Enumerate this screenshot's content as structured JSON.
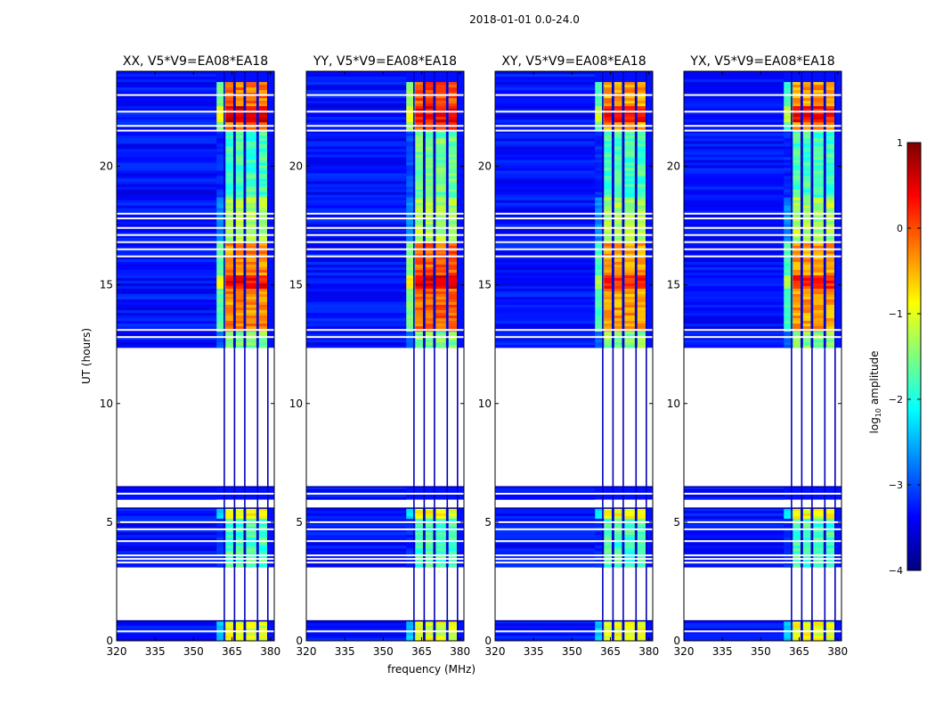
{
  "figure": {
    "suptitle": "2018-01-01 0.0-24.0"
  },
  "colormap": [
    "#00007f",
    "#0000ff",
    "#007fff",
    "#00ffff",
    "#7fff7f",
    "#ffff00",
    "#ff7f00",
    "#ff0000",
    "#7f0000"
  ],
  "chart_data": [
    {
      "type": "heatmap",
      "title": "XX, V5*V9=EA08*EA18",
      "xlabel": "",
      "ylabel": "UT (hours)",
      "xlim": [
        320,
        381.5
      ],
      "ylim": [
        0,
        24
      ],
      "xticks": [
        320,
        335,
        350,
        365,
        380
      ],
      "yticks": [
        0,
        5,
        10,
        15,
        20
      ],
      "zlabel": "log10 amplitude",
      "zlim": [
        -4,
        1
      ],
      "background_level": -3.3,
      "band_start_mhz": 359,
      "channel_bands_mhz": [
        [
          362.5,
          365.5
        ],
        [
          366.5,
          369.5
        ],
        [
          370.5,
          374.5
        ],
        [
          375.5,
          379.0
        ]
      ],
      "band_dividers_mhz": [
        362,
        366,
        370,
        375,
        379
      ],
      "data_time_ranges_hours": [
        [
          0,
          0.85
        ],
        [
          3.1,
          5.6
        ],
        [
          5.95,
          6.5
        ],
        [
          12.35,
          24
        ]
      ],
      "flagged_time_rows_hours": [
        0.4,
        3.3,
        3.45,
        3.6,
        4.2,
        4.7,
        5.0,
        6.2,
        12.8,
        13.1,
        16.2,
        16.5,
        16.8,
        17.1,
        17.4,
        17.8,
        18.0,
        21.5,
        21.7,
        22.3,
        23.0
      ],
      "intensity_regions": [
        {
          "t_start": 0,
          "t_end": 0.85,
          "level": -1.0
        },
        {
          "t_start": 3.1,
          "t_end": 5.6,
          "level": -1.8
        },
        {
          "t_start": 5.2,
          "t_end": 5.6,
          "level": -0.9
        },
        {
          "t_start": 12.35,
          "t_end": 13.0,
          "level": -1.5
        },
        {
          "t_start": 13.0,
          "t_end": 16.8,
          "level": -0.3
        },
        {
          "t_start": 14.8,
          "t_end": 15.4,
          "level": 0.4
        },
        {
          "t_start": 16.8,
          "t_end": 18.7,
          "level": -1.3
        },
        {
          "t_start": 18.7,
          "t_end": 21.5,
          "level": -1.8
        },
        {
          "t_start": 21.5,
          "t_end": 23.5,
          "level": -0.2
        },
        {
          "t_start": 21.9,
          "t_end": 22.5,
          "level": 0.5
        }
      ]
    },
    {
      "type": "heatmap",
      "title": "YY, V5*V9=EA08*EA18",
      "xlabel": "frequency (MHz)",
      "ylabel": "",
      "xlim": [
        320,
        381.5
      ],
      "ylim": [
        0,
        24
      ],
      "xticks": [
        320,
        335,
        350,
        365,
        380
      ],
      "yticks": [
        0,
        5,
        10,
        15,
        20
      ],
      "zlabel": "log10 amplitude",
      "zlim": [
        -4,
        1
      ],
      "background_level": -3.3,
      "band_start_mhz": 359,
      "channel_bands_mhz": [
        [
          362.5,
          365.5
        ],
        [
          366.5,
          369.5
        ],
        [
          370.5,
          374.5
        ],
        [
          375.5,
          379.0
        ]
      ],
      "band_dividers_mhz": [
        362,
        366,
        370,
        375,
        379
      ],
      "data_time_ranges_hours": [
        [
          0,
          0.85
        ],
        [
          3.1,
          5.6
        ],
        [
          5.95,
          6.5
        ],
        [
          12.35,
          24
        ]
      ],
      "flagged_time_rows_hours": [
        0.4,
        3.3,
        3.45,
        3.6,
        4.2,
        4.7,
        5.0,
        6.2,
        12.8,
        13.1,
        16.2,
        16.5,
        16.8,
        17.1,
        17.4,
        17.8,
        18.0,
        21.5,
        21.7,
        22.3,
        23.0
      ],
      "intensity_regions": [
        {
          "t_start": 0,
          "t_end": 0.85,
          "level": -1.0
        },
        {
          "t_start": 3.1,
          "t_end": 5.6,
          "level": -1.8
        },
        {
          "t_start": 5.2,
          "t_end": 5.6,
          "level": -0.9
        },
        {
          "t_start": 12.35,
          "t_end": 13.0,
          "level": -1.5
        },
        {
          "t_start": 13.0,
          "t_end": 16.8,
          "level": -0.1
        },
        {
          "t_start": 14.8,
          "t_end": 15.4,
          "level": 0.6
        },
        {
          "t_start": 16.8,
          "t_end": 18.7,
          "level": -1.3
        },
        {
          "t_start": 18.7,
          "t_end": 21.5,
          "level": -1.6
        },
        {
          "t_start": 21.5,
          "t_end": 23.5,
          "level": 0.0
        },
        {
          "t_start": 21.9,
          "t_end": 22.5,
          "level": 0.4
        }
      ]
    },
    {
      "type": "heatmap",
      "title": "XY, V5*V9=EA08*EA18",
      "xlabel": "",
      "ylabel": "",
      "xlim": [
        320,
        381.5
      ],
      "ylim": [
        0,
        24
      ],
      "xticks": [
        320,
        335,
        350,
        365,
        380
      ],
      "yticks": [
        0,
        5,
        10,
        15,
        20
      ],
      "zlabel": "log10 amplitude",
      "zlim": [
        -4,
        1
      ],
      "background_level": -3.3,
      "band_start_mhz": 359,
      "channel_bands_mhz": [
        [
          362.5,
          365.5
        ],
        [
          366.5,
          369.5
        ],
        [
          370.5,
          374.5
        ],
        [
          375.5,
          379.0
        ]
      ],
      "band_dividers_mhz": [
        362,
        366,
        370,
        375,
        379
      ],
      "data_time_ranges_hours": [
        [
          0,
          0.85
        ],
        [
          3.1,
          5.6
        ],
        [
          5.95,
          6.5
        ],
        [
          12.35,
          24
        ]
      ],
      "flagged_time_rows_hours": [
        0.4,
        3.3,
        3.45,
        3.6,
        4.2,
        4.7,
        5.0,
        6.2,
        12.8,
        13.1,
        16.2,
        16.5,
        16.8,
        17.1,
        17.4,
        17.8,
        18.0,
        21.5,
        21.7,
        22.3,
        23.0
      ],
      "intensity_regions": [
        {
          "t_start": 0,
          "t_end": 0.85,
          "level": -1.0
        },
        {
          "t_start": 3.1,
          "t_end": 5.6,
          "level": -1.8
        },
        {
          "t_start": 5.2,
          "t_end": 5.6,
          "level": -0.9
        },
        {
          "t_start": 12.35,
          "t_end": 13.0,
          "level": -1.5
        },
        {
          "t_start": 13.0,
          "t_end": 16.8,
          "level": -0.4
        },
        {
          "t_start": 14.8,
          "t_end": 15.4,
          "level": 0.2
        },
        {
          "t_start": 16.8,
          "t_end": 18.7,
          "level": -1.3
        },
        {
          "t_start": 18.7,
          "t_end": 21.5,
          "level": -1.8
        },
        {
          "t_start": 21.5,
          "t_end": 23.5,
          "level": -0.4
        },
        {
          "t_start": 21.9,
          "t_end": 22.5,
          "level": 0.3
        }
      ]
    },
    {
      "type": "heatmap",
      "title": "YX, V5*V9=EA08*EA18",
      "xlabel": "",
      "ylabel": "",
      "xlim": [
        320,
        381.5
      ],
      "ylim": [
        0,
        24
      ],
      "xticks": [
        320,
        335,
        350,
        365,
        380
      ],
      "yticks": [
        0,
        5,
        10,
        15,
        20
      ],
      "zlabel": "log10 amplitude",
      "zlim": [
        -4,
        1
      ],
      "background_level": -3.3,
      "band_start_mhz": 359,
      "channel_bands_mhz": [
        [
          362.5,
          365.5
        ],
        [
          366.5,
          369.5
        ],
        [
          370.5,
          374.5
        ],
        [
          375.5,
          379.0
        ]
      ],
      "band_dividers_mhz": [
        362,
        366,
        370,
        375,
        379
      ],
      "data_time_ranges_hours": [
        [
          0,
          0.85
        ],
        [
          3.1,
          5.6
        ],
        [
          5.95,
          6.5
        ],
        [
          12.35,
          24
        ]
      ],
      "flagged_time_rows_hours": [
        0.4,
        3.3,
        3.45,
        3.6,
        4.2,
        4.7,
        5.0,
        6.2,
        12.8,
        13.1,
        16.2,
        16.5,
        16.8,
        17.1,
        17.4,
        17.8,
        18.0,
        21.5,
        21.7,
        22.3,
        23.0
      ],
      "intensity_regions": [
        {
          "t_start": 0,
          "t_end": 0.85,
          "level": -1.0
        },
        {
          "t_start": 3.1,
          "t_end": 5.6,
          "level": -1.8
        },
        {
          "t_start": 5.2,
          "t_end": 5.6,
          "level": -0.9
        },
        {
          "t_start": 12.35,
          "t_end": 13.0,
          "level": -1.5
        },
        {
          "t_start": 13.0,
          "t_end": 16.8,
          "level": -0.4
        },
        {
          "t_start": 14.8,
          "t_end": 15.4,
          "level": 0.2
        },
        {
          "t_start": 16.8,
          "t_end": 18.7,
          "level": -1.3
        },
        {
          "t_start": 18.7,
          "t_end": 21.5,
          "level": -1.8
        },
        {
          "t_start": 21.5,
          "t_end": 23.5,
          "level": -0.4
        },
        {
          "t_start": 21.9,
          "t_end": 22.5,
          "level": 0.3
        }
      ]
    }
  ],
  "colorbar": {
    "label_prefix": "log",
    "label_subscript": "10",
    "label_suffix": " amplitude",
    "range": [
      -4,
      1
    ],
    "ticks": [
      "1",
      "0",
      "−1",
      "−2",
      "−3",
      "−4"
    ]
  }
}
